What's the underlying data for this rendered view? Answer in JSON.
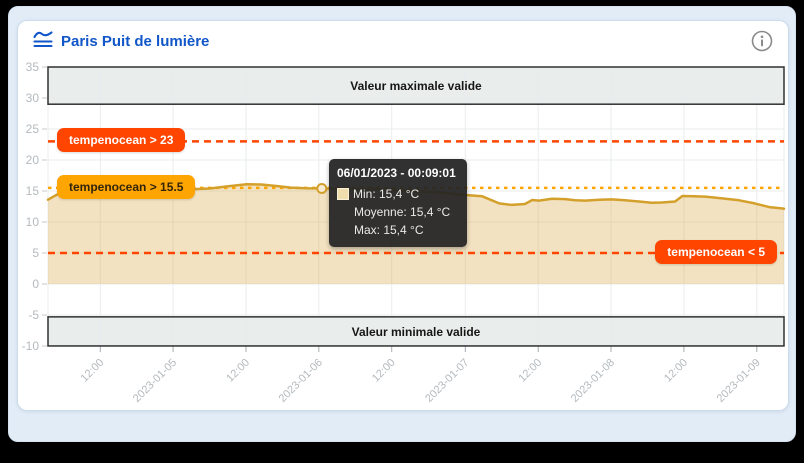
{
  "header": {
    "title": "Paris Puit de lumière",
    "icon": "waves-chart-icon",
    "info_icon": "info-circle-icon"
  },
  "tooltip": {
    "title": "06/01/2023 - 00:09:01",
    "swatch_color": "#efddad",
    "rows": [
      "Min: 15,4 °C",
      "Moyenne: 15,4 °C",
      "Max: 15,4 °C"
    ]
  },
  "chart_data": {
    "type": "area",
    "title": "Paris Puit de lumière",
    "xlabel": "",
    "ylabel": "",
    "unit": "°C",
    "ylim": [
      -10,
      35
    ],
    "y_ticks": [
      35,
      30,
      25,
      20,
      15,
      10,
      5,
      0,
      -5,
      -10
    ],
    "x_ticks": [
      {
        "pos": 0.071,
        "label": "12:00"
      },
      {
        "pos": 0.17,
        "label": "2023-01-05"
      },
      {
        "pos": 0.269,
        "label": "12:00"
      },
      {
        "pos": 0.368,
        "label": "2023-01-06"
      },
      {
        "pos": 0.467,
        "label": "12:00"
      },
      {
        "pos": 0.567,
        "label": "2023-01-07"
      },
      {
        "pos": 0.666,
        "label": "12:00"
      },
      {
        "pos": 0.765,
        "label": "2023-01-08"
      },
      {
        "pos": 0.864,
        "label": "12:00"
      },
      {
        "pos": 0.963,
        "label": "2023-01-09"
      }
    ],
    "bands": [
      {
        "label": "Valeur maximale valide",
        "from": 29,
        "to": 35
      },
      {
        "label": "Valeur minimale valide",
        "from": -10,
        "to": -5.3
      }
    ],
    "thresholds": [
      {
        "label": "tempenocean > 23",
        "value": 23,
        "color": "#ff4500",
        "text_color": "#ffffff",
        "dash": "7 5"
      },
      {
        "label": "tempenocean > 15.5",
        "value": 15.5,
        "color": "#ffa500",
        "text_color": "#33250a",
        "dash": "3.5 4.5"
      },
      {
        "label": "tempenocean < 5",
        "value": 5,
        "color": "#ff4500",
        "text_color": "#ffffff",
        "dash": "7 5"
      }
    ],
    "series": [
      {
        "name": "tempenocean",
        "color": "#d4a02c",
        "fill": "rgba(214,160,50,0.30)",
        "area_baseline": 0,
        "points": [
          [
            0,
            13.6
          ],
          [
            0.012,
            14.4
          ],
          [
            0.025,
            14.9
          ],
          [
            0.04,
            15.15
          ],
          [
            0.07,
            15.2
          ],
          [
            0.1,
            15.18
          ],
          [
            0.13,
            15.22
          ],
          [
            0.16,
            15.2
          ],
          [
            0.19,
            15.25
          ],
          [
            0.22,
            15.4
          ],
          [
            0.245,
            15.75
          ],
          [
            0.27,
            16.1
          ],
          [
            0.29,
            16.05
          ],
          [
            0.31,
            15.8
          ],
          [
            0.33,
            15.55
          ],
          [
            0.35,
            15.45
          ],
          [
            0.372,
            15.4
          ],
          [
            0.41,
            15.35
          ],
          [
            0.45,
            15.25
          ],
          [
            0.49,
            15.05
          ],
          [
            0.52,
            14.85
          ],
          [
            0.54,
            14.7
          ],
          [
            0.567,
            14.35
          ],
          [
            0.59,
            14.15
          ],
          [
            0.613,
            13.0
          ],
          [
            0.63,
            12.75
          ],
          [
            0.648,
            12.9
          ],
          [
            0.658,
            13.55
          ],
          [
            0.667,
            13.45
          ],
          [
            0.685,
            13.75
          ],
          [
            0.703,
            13.7
          ],
          [
            0.716,
            13.5
          ],
          [
            0.73,
            13.45
          ],
          [
            0.749,
            13.6
          ],
          [
            0.766,
            13.65
          ],
          [
            0.784,
            13.5
          ],
          [
            0.803,
            13.3
          ],
          [
            0.82,
            13.1
          ],
          [
            0.834,
            13.15
          ],
          [
            0.852,
            13.3
          ],
          [
            0.862,
            14.2
          ],
          [
            0.877,
            14.15
          ],
          [
            0.893,
            14.1
          ],
          [
            0.916,
            13.8
          ],
          [
            0.939,
            13.5
          ],
          [
            0.96,
            13.0
          ],
          [
            0.98,
            12.4
          ],
          [
            0.997,
            12.2
          ],
          [
            1,
            12.15
          ]
        ]
      }
    ],
    "marker": {
      "pos": 0.372,
      "value": 15.4
    },
    "grid": true,
    "legend": "none"
  },
  "colors": {
    "outer_bg": "#000000",
    "page_bg": "#e2ecf7",
    "card_bg": "#ffffff",
    "card_border": "#ccdcec",
    "title_blue": "#1157c9",
    "band_fill": "#e9edec",
    "band_border": "#303030",
    "axis_label": "#b4babe",
    "grid": "#e9ecee",
    "tick": "#a8aeb2",
    "tooltip_bg": "rgba(36,36,36,0.94)",
    "marker_fill": "#f7ecd2",
    "info_icon": "#8a8a8a"
  }
}
